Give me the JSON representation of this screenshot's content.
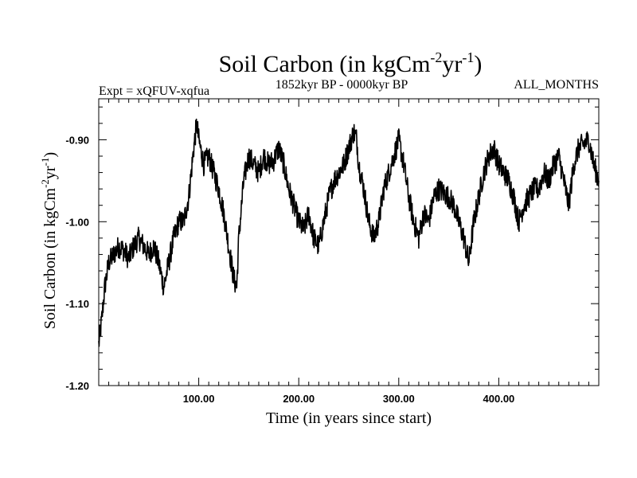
{
  "chart_data": {
    "type": "line",
    "title": {
      "main": "Soil Carbon (in kgCm",
      "sup1": "-2",
      "mid": "yr",
      "sup2": "-1",
      "end": ")"
    },
    "experiment": "Expt = xQFUV-xqfua",
    "period": "1852kyr BP - 0000kyr BP",
    "months": "ALL_MONTHS",
    "xlabel": "Time (in years since start)",
    "ylabel": {
      "main": "Soil Carbon (in kgCm",
      "sup1": "-2",
      "mid": "yr",
      "sup2": "-1",
      "end": ")"
    },
    "xlim": [
      0,
      500
    ],
    "ylim": [
      -1.2,
      -0.85
    ],
    "x_ticks": [
      {
        "value": 100,
        "label": "100.00"
      },
      {
        "value": 200,
        "label": "200.00"
      },
      {
        "value": 300,
        "label": "300.00"
      },
      {
        "value": 400,
        "label": "400.00"
      }
    ],
    "y_ticks": [
      {
        "value": -0.9,
        "label": "-0.90"
      },
      {
        "value": -1.0,
        "label": "-1.00"
      },
      {
        "value": -1.1,
        "label": "-1.10"
      },
      {
        "value": -1.2,
        "label": "-1.20"
      }
    ],
    "line_color": "#000000",
    "series": [
      {
        "name": "Soil Carbon",
        "x": [
          0,
          3,
          6,
          10,
          15,
          20,
          25,
          30,
          35,
          40,
          45,
          50,
          55,
          60,
          65,
          70,
          75,
          80,
          85,
          90,
          95,
          98,
          100,
          105,
          110,
          115,
          120,
          125,
          130,
          135,
          138,
          140,
          145,
          150,
          155,
          160,
          165,
          170,
          175,
          180,
          185,
          190,
          195,
          200,
          205,
          210,
          215,
          220,
          225,
          230,
          235,
          240,
          245,
          250,
          255,
          258,
          260,
          265,
          270,
          275,
          280,
          285,
          290,
          295,
          300,
          305,
          310,
          315,
          320,
          325,
          330,
          335,
          340,
          345,
          350,
          355,
          360,
          365,
          370,
          375,
          380,
          385,
          390,
          395,
          400,
          405,
          410,
          415,
          420,
          425,
          430,
          435,
          440,
          445,
          450,
          455,
          460,
          465,
          470,
          475,
          480,
          485,
          490,
          495,
          500
        ],
        "y": [
          -1.15,
          -1.12,
          -1.08,
          -1.05,
          -1.04,
          -1.03,
          -1.035,
          -1.045,
          -1.03,
          -1.02,
          -1.03,
          -1.04,
          -1.03,
          -1.05,
          -1.08,
          -1.05,
          -1.02,
          -1.0,
          -1.0,
          -0.97,
          -0.91,
          -0.88,
          -0.9,
          -0.93,
          -0.92,
          -0.94,
          -0.96,
          -0.99,
          -1.03,
          -1.07,
          -1.08,
          -1.02,
          -0.95,
          -0.92,
          -0.93,
          -0.94,
          -0.92,
          -0.93,
          -0.925,
          -0.91,
          -0.93,
          -0.96,
          -0.98,
          -1.0,
          -1.01,
          -0.99,
          -1.02,
          -1.03,
          -1.0,
          -0.97,
          -0.95,
          -0.94,
          -0.93,
          -0.91,
          -0.89,
          -0.9,
          -0.93,
          -0.96,
          -1.0,
          -1.02,
          -1.0,
          -0.96,
          -0.94,
          -0.92,
          -0.9,
          -0.93,
          -0.97,
          -1.0,
          -1.02,
          -0.99,
          -1.0,
          -0.97,
          -0.96,
          -0.965,
          -0.97,
          -0.98,
          -1.0,
          -1.02,
          -1.05,
          -1.0,
          -0.97,
          -0.94,
          -0.92,
          -0.91,
          -0.93,
          -0.94,
          -0.95,
          -0.97,
          -1.0,
          -0.98,
          -0.97,
          -0.96,
          -0.96,
          -0.94,
          -0.95,
          -0.93,
          -0.92,
          -0.95,
          -0.98,
          -0.93,
          -0.91,
          -0.905,
          -0.9,
          -0.93,
          -0.95
        ]
      }
    ]
  }
}
